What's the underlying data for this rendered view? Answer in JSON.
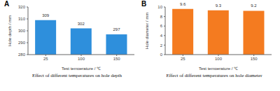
{
  "chart_data": [
    {
      "type": "bar",
      "title": "Effect of different temperatures on hole depth",
      "annotations": [
        "A"
      ],
      "x_label": "Test temperature / ℃",
      "y_label": "Hole depth / mm",
      "categories": [
        "25",
        "100",
        "150"
      ],
      "values": [
        309,
        302,
        297
      ],
      "color": "#2e8fdc",
      "ylim": [
        280,
        320
      ],
      "yticks": [
        280,
        290,
        300,
        310,
        320
      ],
      "grid": false,
      "data_labels": true
    },
    {
      "type": "bar",
      "title": "Effect of different temperatures on hole diameter",
      "annotations": [
        "B"
      ],
      "x_label": "Test temperature / ℃",
      "y_label": "Hole diameter / mm",
      "categories": [
        "25",
        "100",
        "150"
      ],
      "values": [
        9.6,
        9.3,
        9.2
      ],
      "color": "#f47b20",
      "ylim": [
        0,
        10
      ],
      "yticks": [
        0,
        2,
        4,
        6,
        8,
        10
      ],
      "grid": false,
      "data_labels": true
    }
  ]
}
